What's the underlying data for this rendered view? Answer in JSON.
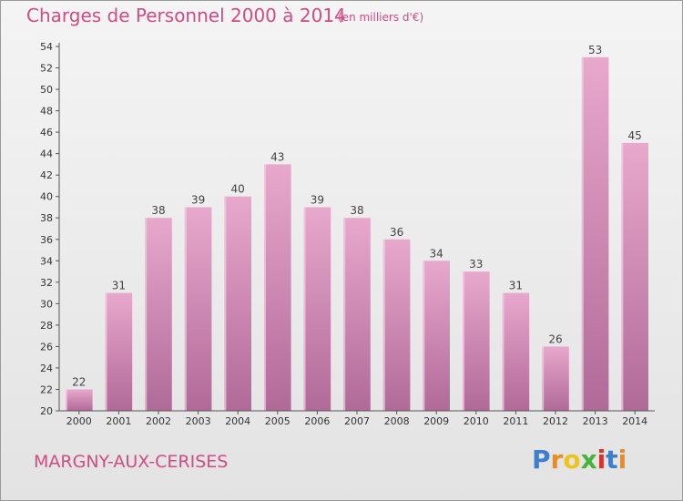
{
  "title": "Charges de Personnel 2000 à 2014",
  "subtitle": "(en milliers d'€)",
  "commune": "MARGNY-AUX-CERISES",
  "logo": {
    "letters": [
      "P",
      "r",
      "o",
      "x",
      "i",
      "t",
      "i"
    ]
  },
  "colors": {
    "title": "#d14c84",
    "bar_top": "#e8a8cc",
    "bar_bottom": "#b06a98",
    "axis": "#555555"
  },
  "chart_data": {
    "type": "bar",
    "categories": [
      "2000",
      "2001",
      "2002",
      "2003",
      "2004",
      "2005",
      "2006",
      "2007",
      "2008",
      "2009",
      "2010",
      "2011",
      "2012",
      "2013",
      "2014"
    ],
    "values": [
      22,
      31,
      38,
      39,
      40,
      43,
      39,
      38,
      36,
      34,
      33,
      31,
      26,
      53,
      45
    ],
    "title": "Charges de Personnel 2000 à 2014",
    "xlabel": "",
    "ylabel": "",
    "ylim": [
      20,
      54
    ],
    "yticks": [
      20,
      22,
      24,
      26,
      28,
      30,
      32,
      34,
      36,
      38,
      40,
      42,
      44,
      46,
      48,
      50,
      52,
      54
    ],
    "grid": false,
    "data_labels": true
  }
}
